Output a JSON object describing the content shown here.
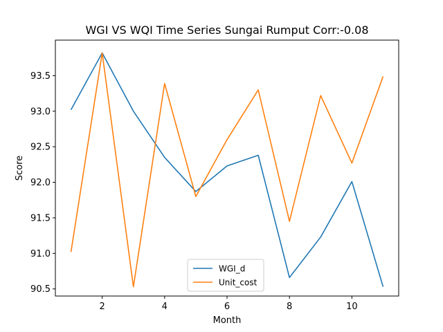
{
  "chart_data": {
    "type": "line",
    "title": "WGI VS WQI Time Series Sungai Rumput Corr:-0.08",
    "xlabel": "Month",
    "ylabel": "Score",
    "x": [
      1,
      2,
      3,
      4,
      5,
      6,
      7,
      8,
      9,
      10,
      11
    ],
    "xlim": [
      0.5,
      11.5
    ],
    "ylim": [
      90.4,
      94.0
    ],
    "xticks": [
      2,
      4,
      6,
      8,
      10
    ],
    "yticks": [
      90.5,
      91.0,
      91.5,
      92.0,
      92.5,
      93.0,
      93.5
    ],
    "xtick_labels": [
      "2",
      "4",
      "6",
      "8",
      "10"
    ],
    "ytick_labels": [
      "90.5",
      "91.0",
      "91.5",
      "92.0",
      "92.5",
      "93.0",
      "93.5"
    ],
    "grid": false,
    "legend_position": "bottom-center",
    "series": [
      {
        "name": "WGI_d",
        "color": "#1f77b4",
        "values": [
          93.02,
          93.82,
          93.0,
          92.35,
          91.87,
          92.23,
          92.38,
          90.66,
          91.23,
          92.01,
          90.53
        ]
      },
      {
        "name": "Unit_cost",
        "color": "#ff7f0e",
        "values": [
          91.02,
          93.82,
          90.53,
          93.39,
          91.8,
          92.6,
          93.3,
          91.45,
          93.22,
          92.27,
          93.49
        ]
      }
    ]
  }
}
